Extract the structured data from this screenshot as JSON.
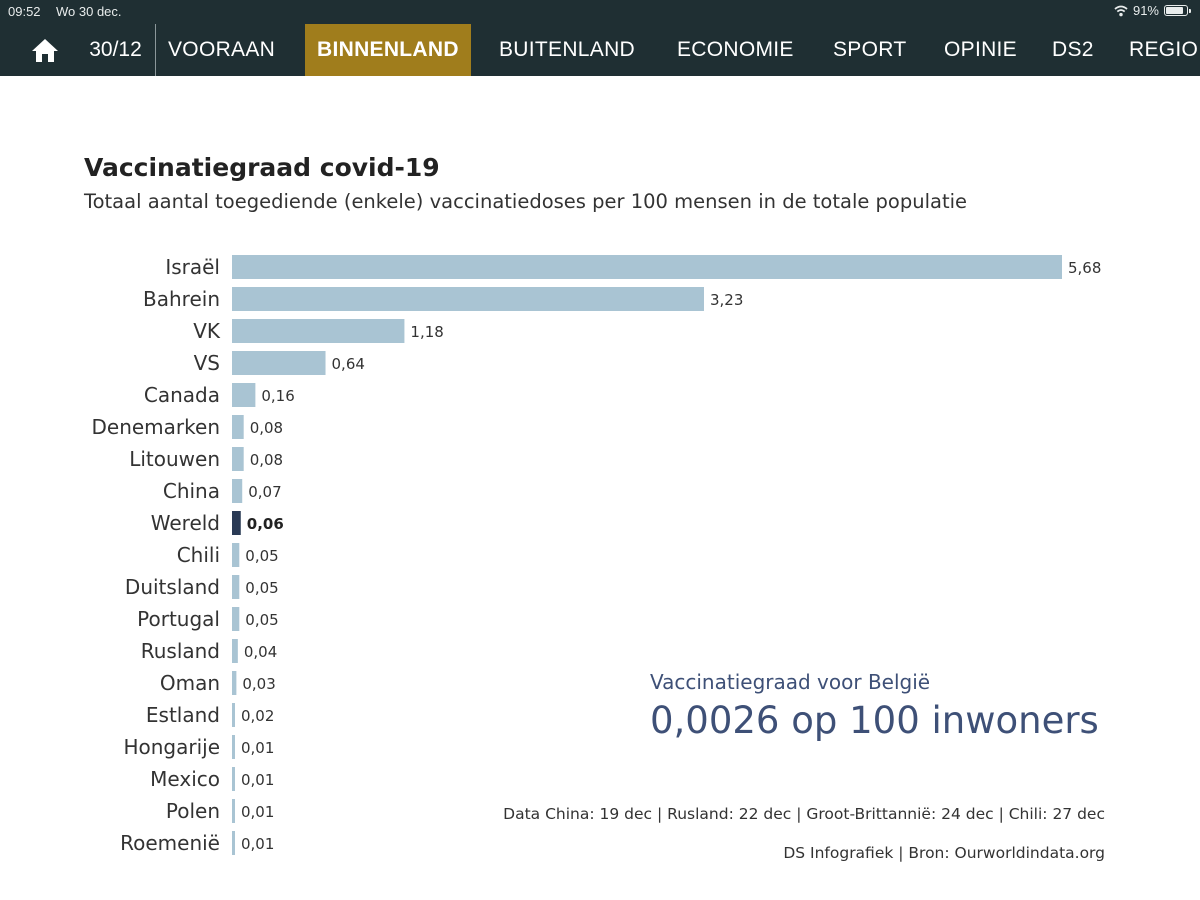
{
  "status_bar": {
    "time": "09:52",
    "date": "Wo 30 dec.",
    "battery": "91%",
    "battery_level": 0.91
  },
  "nav": {
    "home_icon": "home-icon",
    "date": "30/12",
    "tabs": [
      {
        "label": "VOORAAN",
        "active": false
      },
      {
        "label": "BINNENLAND",
        "active": true
      },
      {
        "label": "BUITENLAND",
        "active": false
      },
      {
        "label": "ECONOMIE",
        "active": false
      },
      {
        "label": "SPORT",
        "active": false
      },
      {
        "label": "OPINIE",
        "active": false
      },
      {
        "label": "DS2",
        "active": false
      },
      {
        "label": "REGIO",
        "active": false
      }
    ],
    "colors": {
      "background": "#1f2f33",
      "active": "#a07d1c"
    }
  },
  "chart_data": {
    "type": "bar",
    "orientation": "horizontal",
    "title": "Vaccinatiegraad covid-19",
    "subtitle": "Totaal aantal toegediende (enkele) vaccinatiedoses per 100 mensen in de totale populatie",
    "categories": [
      "Israël",
      "Bahrein",
      "VK",
      "VS",
      "Canada",
      "Denemarken",
      "Litouwen",
      "China",
      "Wereld",
      "Chili",
      "Duitsland",
      "Portugal",
      "Rusland",
      "Oman",
      "Estland",
      "Hongarije",
      "Mexico",
      "Polen",
      "Roemenië"
    ],
    "values": [
      5.68,
      3.23,
      1.18,
      0.64,
      0.16,
      0.08,
      0.08,
      0.07,
      0.06,
      0.05,
      0.05,
      0.05,
      0.04,
      0.03,
      0.02,
      0.01,
      0.01,
      0.01,
      0.01
    ],
    "value_labels": [
      "5,68",
      "3,23",
      "1,18",
      "0,64",
      "0,16",
      "0,08",
      "0,08",
      "0,07",
      "0,06",
      "0,05",
      "0,05",
      "0,05",
      "0,04",
      "0,03",
      "0,02",
      "0,01",
      "0,01",
      "0,01",
      "0,01"
    ],
    "highlight": "Wereld",
    "colors": {
      "bar": "#a9c4d3",
      "highlight": "#2a3a55",
      "callout": "#3e5077"
    },
    "grid": false,
    "legend": "none",
    "callout": {
      "label": "Vaccinatiegraad voor België",
      "value": "0,0026 op 100 inwoners"
    },
    "notes": [
      "Data China: 19 dec | Rusland: 22 dec | Groot-Brittannië: 24 dec | Chili: 27 dec",
      "DS Infografiek | Bron: Ourworldindata.org"
    ]
  }
}
